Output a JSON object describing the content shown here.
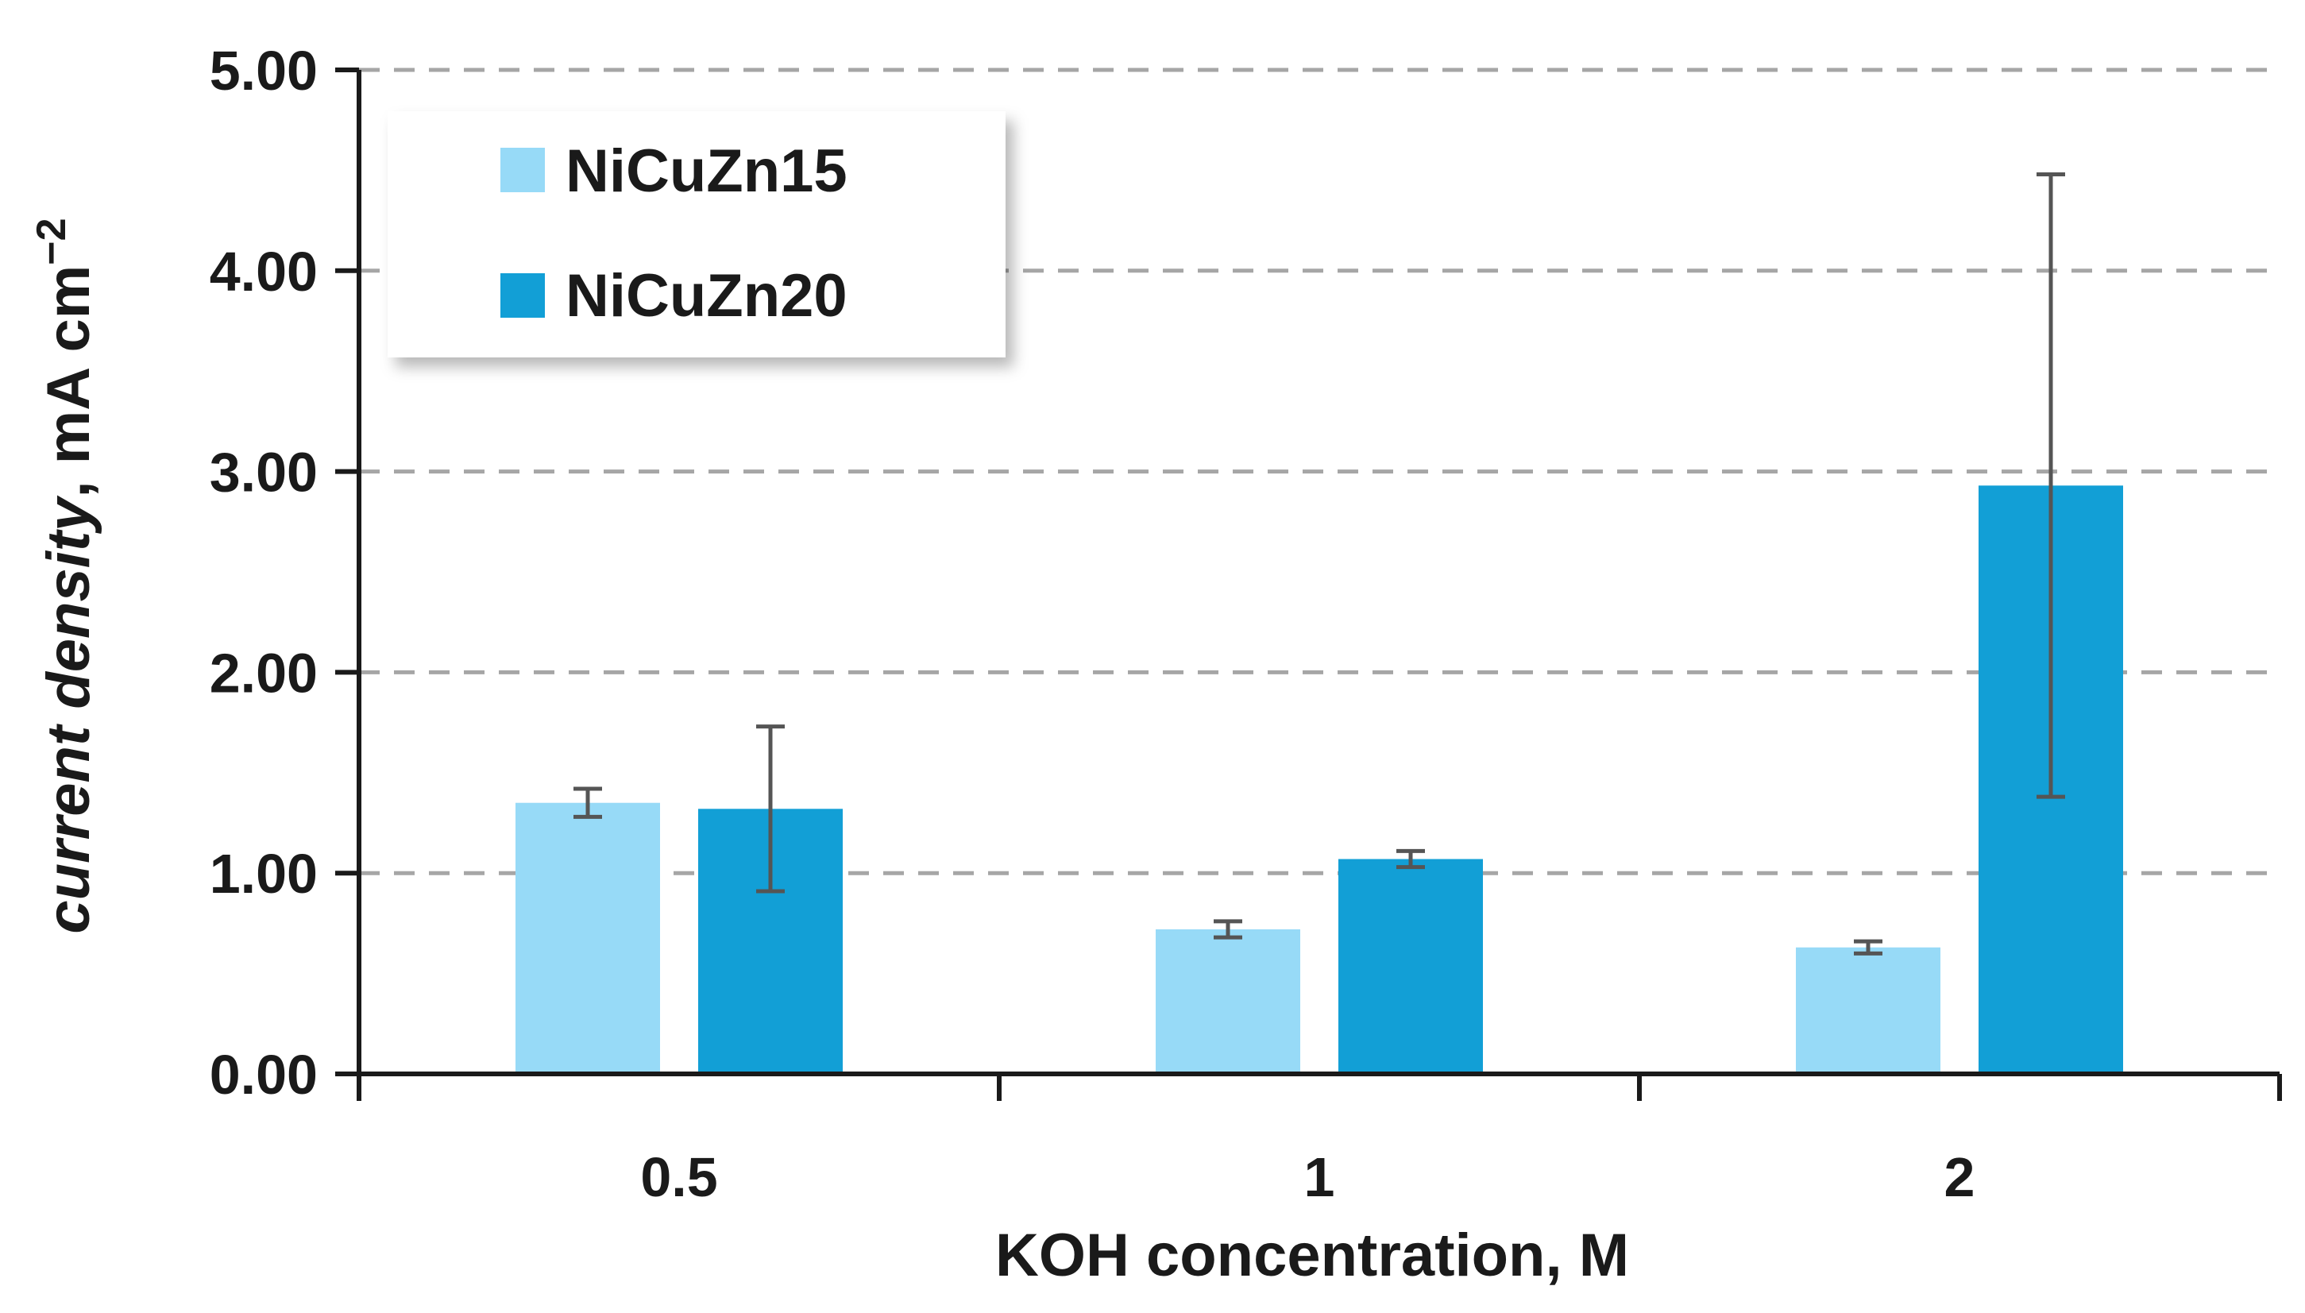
{
  "chart_data": {
    "type": "bar",
    "categories": [
      "0.5",
      "1",
      "2"
    ],
    "series": [
      {
        "name": "NiCuZn15",
        "color": "#97DAF7",
        "values": [
          1.35,
          0.72,
          0.63
        ],
        "error": [
          0.07,
          0.04,
          0.03
        ]
      },
      {
        "name": "NiCuZn20",
        "color": "#129FD6",
        "values": [
          1.32,
          1.07,
          2.93
        ],
        "error": [
          0.41,
          0.04,
          1.55
        ]
      }
    ],
    "xlabel": "KOH concentration, M",
    "ylabel_parts": {
      "italic": "current density",
      "rest": ", mA cm",
      "sup": "−2"
    },
    "ylim": [
      0,
      5
    ],
    "yticks": [
      "0.00",
      "1.00",
      "2.00",
      "3.00",
      "4.00",
      "5.00"
    ],
    "grid": "horizontal-dashed",
    "legend_position": "top-left",
    "error_bar_color": "#555555"
  }
}
